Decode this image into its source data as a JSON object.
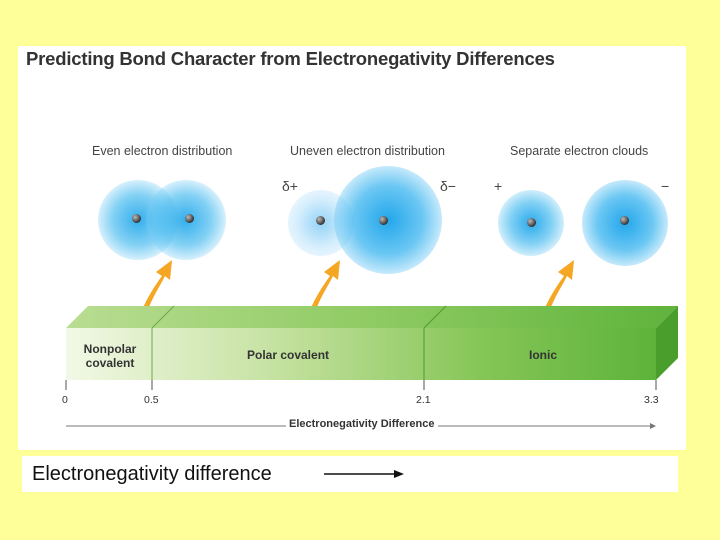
{
  "title": "Predicting Bond Character from Electronegativity Differences",
  "distributions": [
    {
      "label": "Even electron distribution"
    },
    {
      "label": "Uneven electron distribution"
    },
    {
      "label": "Separate electron clouds"
    }
  ],
  "charges": {
    "delta_plus": "δ+",
    "delta_minus": "δ−",
    "plus": "+",
    "minus": "−"
  },
  "bar": {
    "segments": [
      {
        "label_line1": "Nonpolar",
        "label_line2": "covalent",
        "from": 0,
        "to": 0.5
      },
      {
        "label": "Polar covalent",
        "from": 0.5,
        "to": 2.1
      },
      {
        "label": "Ionic",
        "from": 2.1,
        "to": 3.3
      }
    ],
    "ticks": [
      "0",
      "0.5",
      "2.1",
      "3.3"
    ]
  },
  "axis_title": "Electronegativity Difference",
  "caption": "Electronegativity difference",
  "colors": {
    "background": "#ffff99",
    "cloud_blue": "#33aaee",
    "bar_green": "#66bb44",
    "arrow_orange": "#f5a623"
  }
}
